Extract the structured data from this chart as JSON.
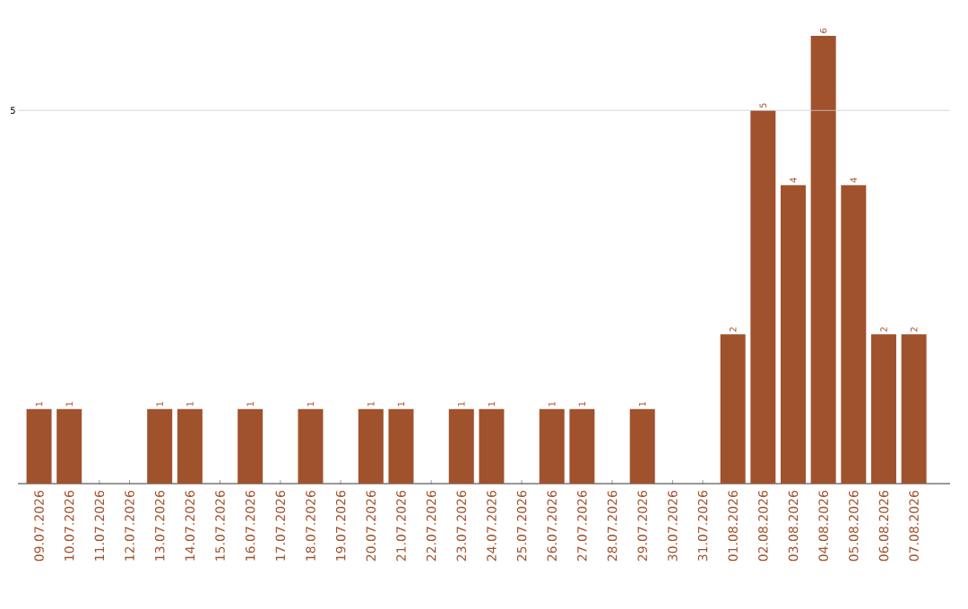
{
  "chart_data": {
    "type": "bar",
    "categories": [
      "09.07.2026",
      "10.07.2026",
      "11.07.2026",
      "12.07.2026",
      "13.07.2026",
      "14.07.2026",
      "15.07.2026",
      "16.07.2026",
      "17.07.2026",
      "18.07.2026",
      "19.07.2026",
      "20.07.2026",
      "21.07.2026",
      "22.07.2026",
      "23.07.2026",
      "24.07.2026",
      "25.07.2026",
      "26.07.2026",
      "27.07.2026",
      "28.07.2026",
      "29.07.2026",
      "30.07.2026",
      "31.07.2026",
      "01.08.2026",
      "02.08.2026",
      "03.08.2026",
      "04.08.2026",
      "05.08.2026",
      "06.08.2026",
      "07.08.2026"
    ],
    "values": [
      1,
      1,
      0,
      0,
      1,
      1,
      0,
      1,
      0,
      1,
      0,
      1,
      1,
      0,
      1,
      1,
      0,
      1,
      1,
      0,
      1,
      0,
      0,
      2,
      5,
      4,
      6,
      4,
      2,
      2
    ],
    "value_labels": [
      "1",
      "1",
      null,
      null,
      "1",
      "1",
      null,
      "1",
      null,
      "1",
      null,
      "1",
      "1",
      null,
      "1",
      "1",
      null,
      "1",
      "1",
      null,
      "1",
      null,
      null,
      "2",
      "5",
      "4",
      "6",
      "4",
      "2",
      "2"
    ],
    "color": "#a0522d",
    "ref_lines": [
      {
        "axis": "y",
        "value": 5,
        "label": "5",
        "color": "#cccccc"
      }
    ]
  }
}
